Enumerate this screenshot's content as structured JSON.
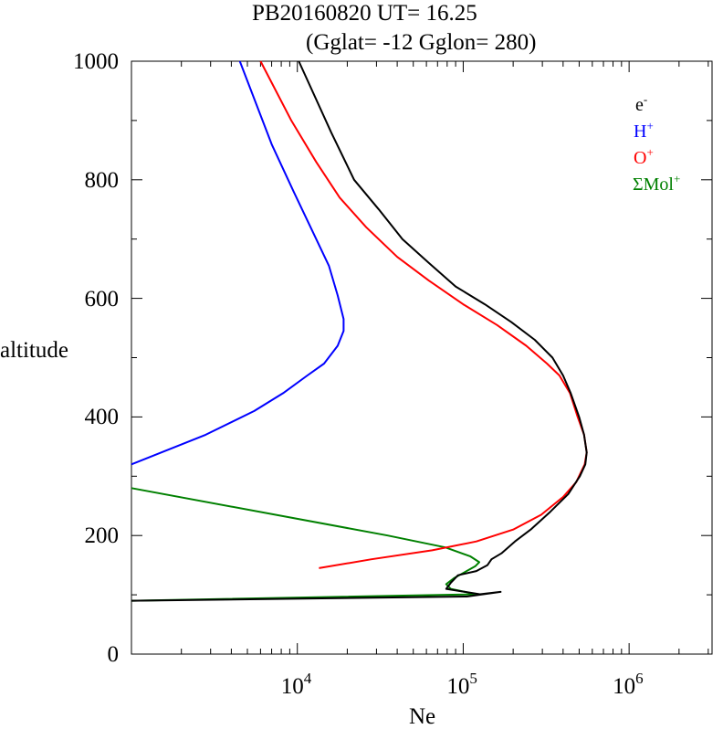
{
  "title": "PB20160820   UT=  16.25",
  "subtitle": "(Gglat= -12   Gglon=  280)",
  "chart_data": {
    "type": "line",
    "x_scale": "log",
    "xlim": [
      1000,
      3162278
    ],
    "ylim": [
      0,
      1000
    ],
    "xlabel": "Ne",
    "ylabel": "altitude",
    "grid": false,
    "legend_position": "top-right",
    "y_ticks": [
      {
        "value": 0,
        "label": "0"
      },
      {
        "value": 200,
        "label": "200"
      },
      {
        "value": 400,
        "label": "400"
      },
      {
        "value": 600,
        "label": "600"
      },
      {
        "value": 800,
        "label": "800"
      },
      {
        "value": 1000,
        "label": "1000"
      }
    ],
    "x_ticks": [
      {
        "value": 10000,
        "base": "10",
        "exp": "4"
      },
      {
        "value": 100000,
        "base": "10",
        "exp": "5"
      },
      {
        "value": 1000000,
        "base": "10",
        "exp": "6"
      }
    ],
    "series": [
      {
        "name": "e",
        "sup": "-",
        "color": "#000000",
        "points": [
          [
            1000,
            90
          ],
          [
            105000,
            97
          ],
          [
            168000,
            105
          ],
          [
            126000,
            101
          ],
          [
            79000,
            110
          ],
          [
            84000,
            120
          ],
          [
            93000,
            133
          ],
          [
            120000,
            140
          ],
          [
            140000,
            150
          ],
          [
            148000,
            160
          ],
          [
            170000,
            170
          ],
          [
            205000,
            190
          ],
          [
            255000,
            210
          ],
          [
            335000,
            240
          ],
          [
            430000,
            270
          ],
          [
            505000,
            300
          ],
          [
            545000,
            320
          ],
          [
            555000,
            340
          ],
          [
            535000,
            370
          ],
          [
            500000,
            400
          ],
          [
            445000,
            440
          ],
          [
            400000,
            470
          ],
          [
            345000,
            500
          ],
          [
            270000,
            530
          ],
          [
            195000,
            560
          ],
          [
            135000,
            590
          ],
          [
            90000,
            620
          ],
          [
            62000,
            660
          ],
          [
            43000,
            700
          ],
          [
            31000,
            750
          ],
          [
            22000,
            800
          ],
          [
            16000,
            880
          ],
          [
            10200,
            1000
          ]
        ]
      },
      {
        "name": "H",
        "sup": "+",
        "color": "#0000ff",
        "points": [
          [
            1000,
            320
          ],
          [
            2800,
            370
          ],
          [
            5500,
            410
          ],
          [
            8200,
            440
          ],
          [
            11500,
            470
          ],
          [
            14500,
            490
          ],
          [
            17500,
            520
          ],
          [
            19000,
            545
          ],
          [
            19000,
            565
          ],
          [
            17500,
            605
          ],
          [
            15500,
            655
          ],
          [
            12500,
            710
          ],
          [
            9500,
            780
          ],
          [
            7000,
            860
          ],
          [
            4500,
            1000
          ]
        ]
      },
      {
        "name": "O",
        "sup": "+",
        "color": "#ff0000",
        "points": [
          [
            13500,
            145
          ],
          [
            28000,
            160
          ],
          [
            65000,
            175
          ],
          [
            120000,
            190
          ],
          [
            200000,
            210
          ],
          [
            295000,
            235
          ],
          [
            400000,
            265
          ],
          [
            480000,
            290
          ],
          [
            540000,
            320
          ],
          [
            555000,
            340
          ],
          [
            535000,
            370
          ],
          [
            490000,
            400
          ],
          [
            440000,
            440
          ],
          [
            380000,
            470
          ],
          [
            320000,
            490
          ],
          [
            240000,
            520
          ],
          [
            160000,
            555
          ],
          [
            100000,
            590
          ],
          [
            62000,
            630
          ],
          [
            40000,
            670
          ],
          [
            26000,
            720
          ],
          [
            18000,
            770
          ],
          [
            13000,
            830
          ],
          [
            9200,
            900
          ],
          [
            6000,
            1000
          ]
        ]
      },
      {
        "name": "ΣMol",
        "sup": "+",
        "color": "#008000",
        "points": [
          [
            1000,
            280
          ],
          [
            35000,
            200
          ],
          [
            78000,
            180
          ],
          [
            110000,
            165
          ],
          [
            125000,
            155
          ],
          [
            118000,
            148
          ],
          [
            88000,
            128
          ],
          [
            79000,
            118
          ],
          [
            84000,
            110
          ],
          [
            120000,
            101
          ],
          [
            1000,
            90
          ]
        ]
      }
    ]
  }
}
